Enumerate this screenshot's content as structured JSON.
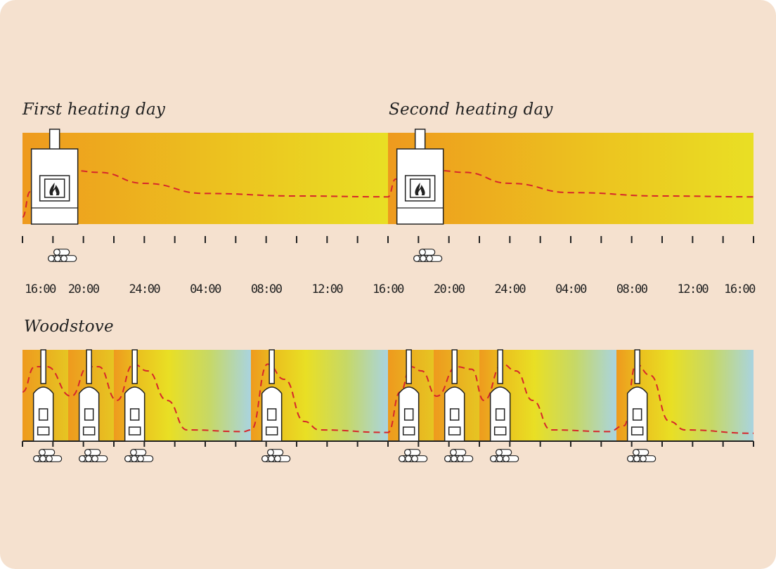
{
  "labels": {
    "day1": "First heating day",
    "day2": "Second heating day",
    "woodstove": "Woodstove"
  },
  "time_labels": [
    "16:00",
    "20:00",
    "24:00",
    "04:00",
    "08:00",
    "12:00",
    "16:00",
    "20:00",
    "24:00",
    "04:00",
    "08:00",
    "12:00",
    "16:00"
  ],
  "colors": {
    "background": "#f5e1cf",
    "warm_orange": "#ef9a1f",
    "warm_yellow": "#e9df24",
    "cool_blue": "#a9d4e0",
    "curve": "#d6262b"
  },
  "icons": {
    "heater": "masonry-heater-icon",
    "flame": "flame-icon",
    "stove": "woodstove-icon",
    "wood": "firewood-logs-icon"
  },
  "chart_data": {
    "type": "line",
    "x_unit": "hours",
    "x_range": [
      0,
      48
    ],
    "tick_interval_hours": 2,
    "panels": [
      {
        "name": "First heating day / Second heating day",
        "firings": [
          1,
          25
        ],
        "heat_curve": [
          [
            0,
            0.05
          ],
          [
            0.5,
            0.35
          ],
          [
            3.5,
            0.6
          ],
          [
            5,
            0.58
          ],
          [
            8,
            0.45
          ],
          [
            12,
            0.33
          ],
          [
            18,
            0.3
          ],
          [
            24,
            0.29
          ],
          [
            24.5,
            0.5
          ],
          [
            27.5,
            0.6
          ],
          [
            29,
            0.58
          ],
          [
            32,
            0.45
          ],
          [
            36,
            0.34
          ],
          [
            42,
            0.3
          ],
          [
            48,
            0.29
          ]
        ]
      },
      {
        "name": "Woodstove",
        "firings": [
          1,
          4,
          7,
          16,
          25,
          28,
          31,
          40
        ],
        "heat_curve": [
          [
            0,
            0.55
          ],
          [
            0.8,
            0.85
          ],
          [
            1.6,
            0.85
          ],
          [
            3.2,
            0.5
          ],
          [
            4.3,
            0.85
          ],
          [
            5,
            0.85
          ],
          [
            6.2,
            0.45
          ],
          [
            7.3,
            0.88
          ],
          [
            8.2,
            0.8
          ],
          [
            9.5,
            0.45
          ],
          [
            10.8,
            0.1
          ],
          [
            14.5,
            0.08
          ],
          [
            15,
            0.1
          ],
          [
            16.1,
            0.88
          ],
          [
            17.2,
            0.7
          ],
          [
            18.5,
            0.2
          ],
          [
            19.5,
            0.1
          ],
          [
            24,
            0.07
          ],
          [
            24.8,
            0.55
          ],
          [
            25.5,
            0.85
          ],
          [
            26.2,
            0.8
          ],
          [
            27.2,
            0.5
          ],
          [
            28.5,
            0.85
          ],
          [
            29.5,
            0.82
          ],
          [
            30.3,
            0.45
          ],
          [
            31.5,
            0.88
          ],
          [
            32.4,
            0.8
          ],
          [
            33.5,
            0.45
          ],
          [
            34.7,
            0.1
          ],
          [
            38.5,
            0.08
          ],
          [
            39.5,
            0.15
          ],
          [
            40.3,
            0.88
          ],
          [
            41.2,
            0.75
          ],
          [
            42.5,
            0.2
          ],
          [
            43.5,
            0.1
          ],
          [
            48,
            0.06
          ]
        ]
      }
    ]
  }
}
